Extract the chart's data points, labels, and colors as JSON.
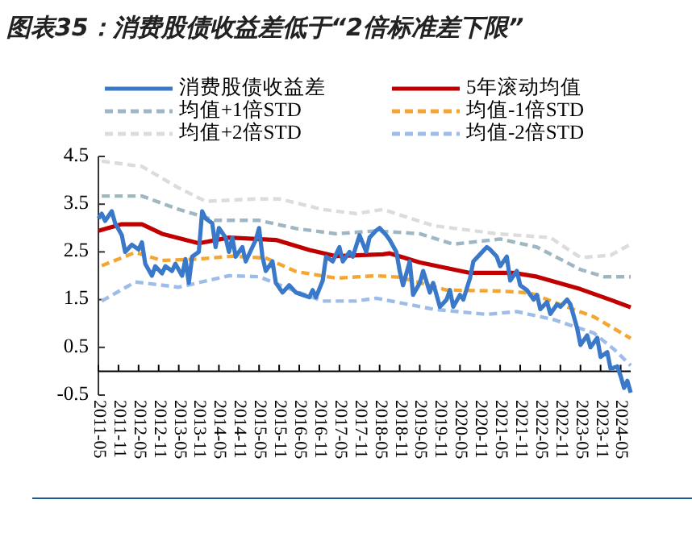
{
  "chart_data": {
    "type": "line",
    "title": "图表35：消费股债收益差低于“2倍标准差下限”",
    "legend": "top",
    "grid": false,
    "xlim": [
      "2011-05",
      "2024-08"
    ],
    "xticks": [
      "2011-05",
      "2011-11",
      "2012-05",
      "2012-11",
      "2013-05",
      "2013-11",
      "2014-05",
      "2014-11",
      "2015-05",
      "2015-11",
      "2016-05",
      "2016-11",
      "2017-05",
      "2017-11",
      "2018-05",
      "2018-11",
      "2019-05",
      "2019-11",
      "2020-05",
      "2020-11",
      "2021-05",
      "2021-11",
      "2022-05",
      "2022-11",
      "2023-05",
      "2023-11",
      "2024-05"
    ],
    "ylim": [
      -0.5,
      4.5
    ],
    "yticks": [
      -0.5,
      0.5,
      1.5,
      2.5,
      3.5,
      4.5
    ],
    "series": [
      {
        "name": "消费股债收益差",
        "color": "#3a78c9",
        "line_style": "solid",
        "x": [
          "2011-05",
          "2011-06",
          "2011-07",
          "2011-09",
          "2011-10",
          "2011-12",
          "2012-01",
          "2012-03",
          "2012-05",
          "2012-06",
          "2012-07",
          "2012-09",
          "2012-10",
          "2012-12",
          "2013-01",
          "2013-03",
          "2013-04",
          "2013-06",
          "2013-07",
          "2013-08",
          "2013-09",
          "2013-11",
          "2013-12",
          "2014-01",
          "2014-03",
          "2014-04",
          "2014-05",
          "2014-07",
          "2014-08",
          "2014-09",
          "2014-10",
          "2014-12",
          "2015-01",
          "2015-03",
          "2015-04",
          "2015-05",
          "2015-06",
          "2015-07",
          "2015-09",
          "2015-10",
          "2015-12",
          "2016-02",
          "2016-04",
          "2016-06",
          "2016-08",
          "2016-09",
          "2016-10",
          "2016-12",
          "2017-01",
          "2017-03",
          "2017-04",
          "2017-05",
          "2017-06",
          "2017-08",
          "2017-09",
          "2017-11",
          "2018-01",
          "2018-02",
          "2018-04",
          "2018-05",
          "2018-07",
          "2018-08",
          "2018-10",
          "2018-11",
          "2018-12",
          "2019-02",
          "2019-03",
          "2019-05",
          "2019-06",
          "2019-08",
          "2019-09",
          "2019-11",
          "2020-01",
          "2020-02",
          "2020-03",
          "2020-05",
          "2020-06",
          "2020-08",
          "2020-09",
          "2020-11",
          "2021-01",
          "2021-02",
          "2021-04",
          "2021-05",
          "2021-07",
          "2021-08",
          "2021-10",
          "2021-11",
          "2022-01",
          "2022-03",
          "2022-04",
          "2022-05",
          "2022-07",
          "2022-08",
          "2022-10",
          "2022-11",
          "2023-01",
          "2023-02",
          "2023-03",
          "2023-04",
          "2023-05",
          "2023-07",
          "2023-08",
          "2023-10",
          "2023-11",
          "2024-01",
          "2024-02",
          "2024-04",
          "2024-05",
          "2024-06",
          "2024-07",
          "2024-08"
        ],
        "values": [
          3.2,
          3.3,
          3.15,
          3.35,
          3.1,
          2.85,
          2.5,
          2.65,
          2.55,
          2.7,
          2.25,
          2.0,
          2.2,
          2.05,
          2.2,
          2.1,
          2.25,
          2.0,
          2.35,
          1.85,
          2.4,
          2.5,
          3.35,
          3.2,
          3.1,
          2.6,
          3.0,
          2.8,
          2.5,
          2.8,
          2.4,
          2.6,
          2.3,
          2.6,
          2.75,
          3.0,
          2.4,
          2.1,
          2.3,
          1.85,
          1.65,
          1.8,
          1.65,
          1.6,
          1.55,
          1.7,
          1.55,
          1.9,
          2.4,
          2.3,
          2.45,
          2.6,
          2.3,
          2.5,
          2.4,
          2.85,
          2.5,
          2.8,
          2.95,
          3.0,
          2.85,
          2.75,
          2.5,
          2.1,
          1.8,
          2.3,
          1.6,
          1.85,
          2.1,
          1.65,
          1.85,
          1.35,
          1.5,
          1.7,
          1.35,
          1.6,
          1.5,
          1.95,
          2.3,
          2.45,
          2.6,
          2.55,
          2.4,
          2.2,
          2.4,
          1.9,
          2.1,
          1.8,
          1.7,
          1.5,
          1.6,
          1.3,
          1.45,
          1.2,
          1.4,
          1.35,
          1.5,
          1.4,
          1.15,
          0.9,
          0.55,
          0.75,
          0.5,
          0.7,
          0.3,
          0.4,
          0.05,
          0.1,
          -0.1,
          -0.35,
          -0.2,
          -0.45
        ]
      },
      {
        "name": "5年滚动均值",
        "color": "#c00000",
        "line_style": "solid",
        "x": [
          "2011-05",
          "2011-12",
          "2012-06",
          "2012-12",
          "2013-11",
          "2014-08",
          "2015-10",
          "2016-08",
          "2017-04",
          "2018-06",
          "2018-08",
          "2019-05",
          "2020-08",
          "2021-09",
          "2022-04",
          "2023-05",
          "2024-03",
          "2024-08"
        ],
        "values": [
          2.94,
          3.08,
          3.08,
          2.88,
          2.68,
          2.8,
          2.75,
          2.54,
          2.41,
          2.45,
          2.47,
          2.28,
          2.06,
          2.06,
          1.98,
          1.72,
          1.47,
          1.34
        ]
      },
      {
        "name": "均值+1倍STD",
        "color": "#9fb6c3",
        "line_style": "dashed",
        "x": [
          "2011-06",
          "2012-06",
          "2013-05",
          "2014-04",
          "2015-05",
          "2016-04",
          "2017-04",
          "2018-04",
          "2019-05",
          "2020-03",
          "2021-05",
          "2022-04",
          "2023-05",
          "2023-12",
          "2024-08"
        ],
        "values": [
          3.67,
          3.67,
          3.39,
          3.16,
          3.16,
          2.99,
          2.88,
          2.94,
          2.88,
          2.66,
          2.77,
          2.6,
          2.13,
          1.98,
          1.98
        ]
      },
      {
        "name": "均值-1倍STD",
        "color": "#f5a630",
        "line_style": "dashed",
        "x": [
          "2011-06",
          "2012-04",
          "2012-12",
          "2013-11",
          "2014-09",
          "2015-07",
          "2016-04",
          "2017-04",
          "2018-04",
          "2018-11",
          "2020-01",
          "2021-05",
          "2022-02",
          "2022-09",
          "2023-09",
          "2024-08"
        ],
        "values": [
          2.21,
          2.49,
          2.32,
          2.35,
          2.41,
          2.37,
          2.09,
          1.95,
          2.0,
          1.97,
          1.7,
          1.68,
          1.64,
          1.45,
          1.14,
          0.69
        ]
      },
      {
        "name": "均值+2倍STD",
        "color": "#dcdcdc",
        "line_style": "dashed",
        "x": [
          "2011-06",
          "2012-06",
          "2013-05",
          "2014-01",
          "2015-04",
          "2015-11",
          "2016-12",
          "2017-10",
          "2018-06",
          "2019-09",
          "2021-04",
          "2022-08",
          "2023-05",
          "2024-02",
          "2024-08"
        ],
        "values": [
          4.4,
          4.29,
          3.84,
          3.56,
          3.61,
          3.61,
          3.39,
          3.3,
          3.39,
          3.05,
          2.88,
          2.8,
          2.38,
          2.43,
          2.66
        ]
      },
      {
        "name": "均值-2倍STD",
        "color": "#9dbde8",
        "line_style": "dashed",
        "x": [
          "2011-06",
          "2012-04",
          "2013-05",
          "2014-08",
          "2015-05",
          "2016-03",
          "2016-12",
          "2017-10",
          "2018-04",
          "2019-09",
          "2021-01",
          "2021-10",
          "2022-09",
          "2023-09",
          "2024-03",
          "2024-08"
        ],
        "values": [
          1.47,
          1.87,
          1.76,
          2.0,
          1.98,
          1.7,
          1.47,
          1.47,
          1.53,
          1.3,
          1.19,
          1.25,
          1.08,
          0.8,
          0.46,
          0.12
        ]
      }
    ]
  }
}
